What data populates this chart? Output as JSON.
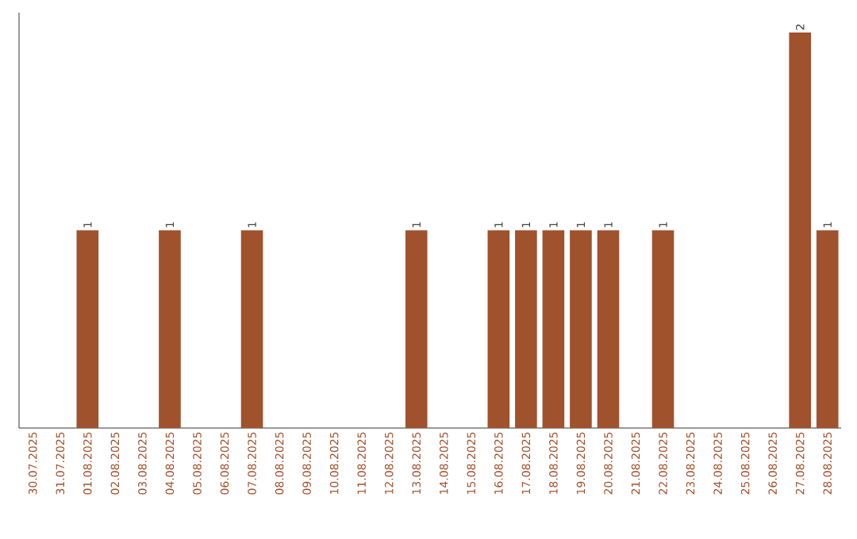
{
  "chart_data": {
    "type": "bar",
    "categories": [
      "30.07.2025",
      "31.07.2025",
      "01.08.2025",
      "02.08.2025",
      "03.08.2025",
      "04.08.2025",
      "05.08.2025",
      "06.08.2025",
      "07.08.2025",
      "08.08.2025",
      "09.08.2025",
      "10.08.2025",
      "11.08.2025",
      "12.08.2025",
      "13.08.2025",
      "14.08.2025",
      "15.08.2025",
      "16.08.2025",
      "17.08.2025",
      "18.08.2025",
      "19.08.2025",
      "20.08.2025",
      "21.08.2025",
      "22.08.2025",
      "23.08.2025",
      "24.08.2025",
      "25.08.2025",
      "26.08.2025",
      "27.08.2025",
      "28.08.2025"
    ],
    "values": [
      0,
      0,
      1,
      0,
      0,
      1,
      0,
      0,
      1,
      0,
      0,
      0,
      0,
      0,
      1,
      0,
      0,
      1,
      1,
      1,
      1,
      1,
      0,
      1,
      0,
      0,
      0,
      0,
      2,
      1
    ],
    "value_labels": [
      null,
      null,
      "1",
      null,
      null,
      "1",
      null,
      null,
      "1",
      null,
      null,
      null,
      null,
      null,
      "1",
      null,
      null,
      "1",
      "1",
      "1",
      "1",
      "1",
      null,
      "1",
      null,
      null,
      null,
      null,
      "2",
      "1"
    ],
    "color": "#a0522d",
    "ylim": [
      0,
      2.1
    ],
    "tick_labels": "x"
  }
}
